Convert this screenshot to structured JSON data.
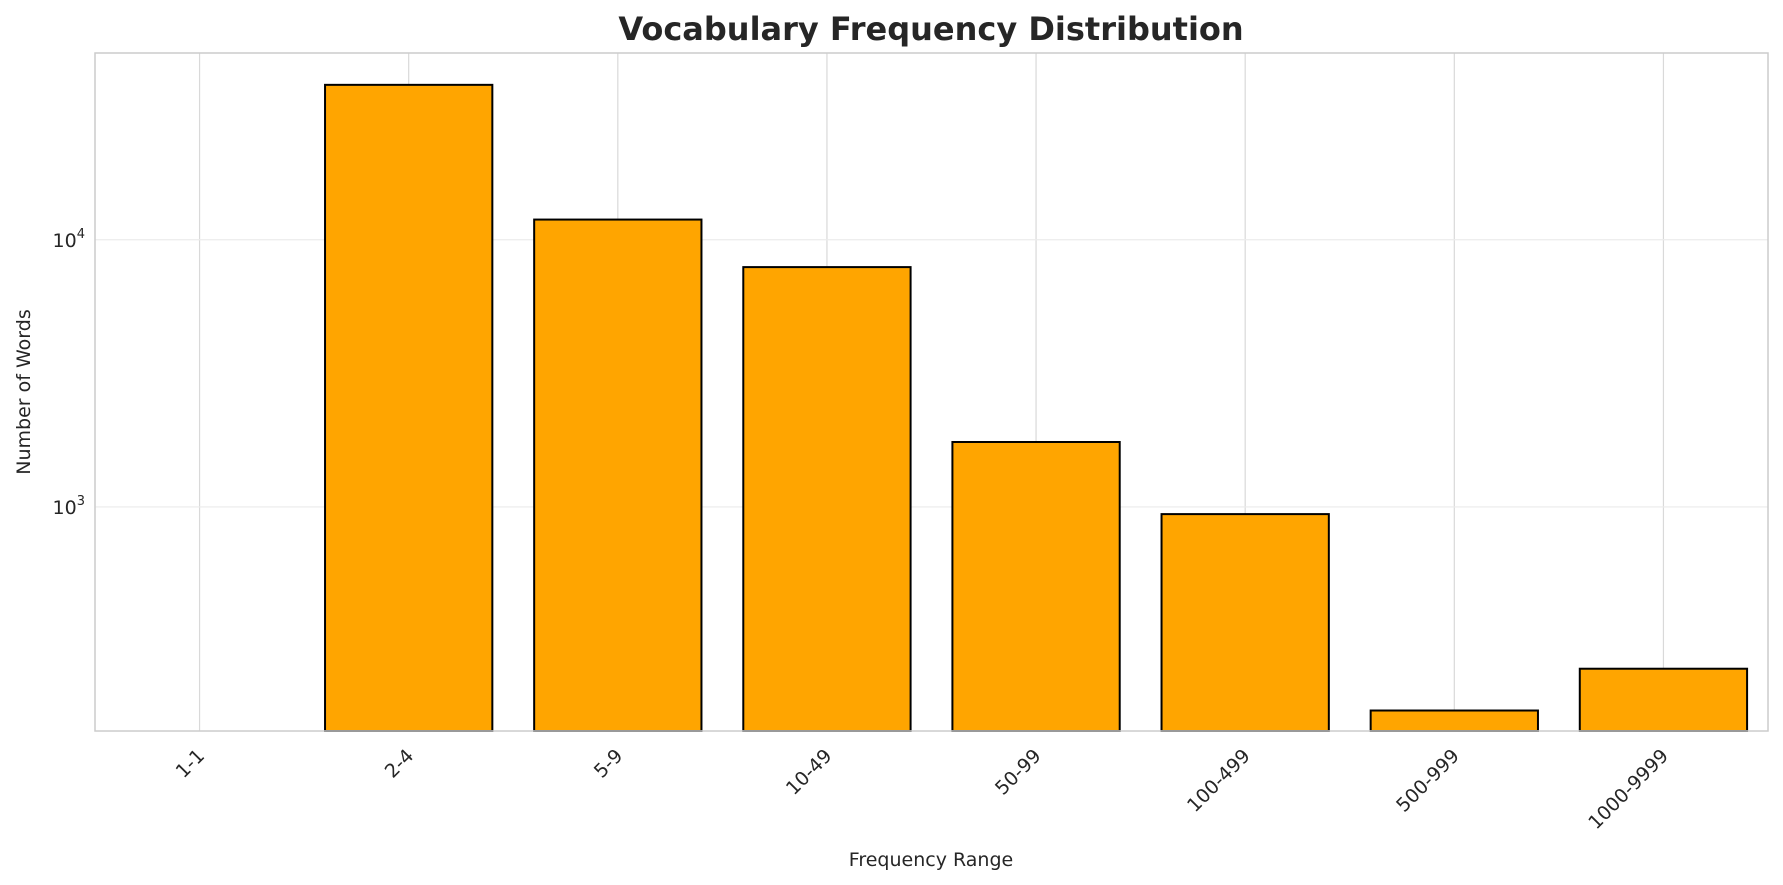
{
  "chart_data": {
    "type": "bar",
    "title": "Vocabulary Frequency Distribution",
    "xlabel": "Frequency Range",
    "ylabel": "Number of Words",
    "categories": [
      "1-1",
      "2-4",
      "5-9",
      "10-49",
      "50-99",
      "100-499",
      "500-999",
      "1000-9999"
    ],
    "values": [
      0,
      38000,
      11900,
      7900,
      1750,
      940,
      173,
      248
    ],
    "y_scale": "log",
    "ylim": [
      145,
      50000
    ],
    "y_ticks": [
      {
        "value": 1000,
        "base": "10",
        "exp": "3"
      },
      {
        "value": 10000,
        "base": "10",
        "exp": "4"
      }
    ],
    "grid": true,
    "bar_color": "#ffa500",
    "bar_edge_color": "#000000"
  }
}
